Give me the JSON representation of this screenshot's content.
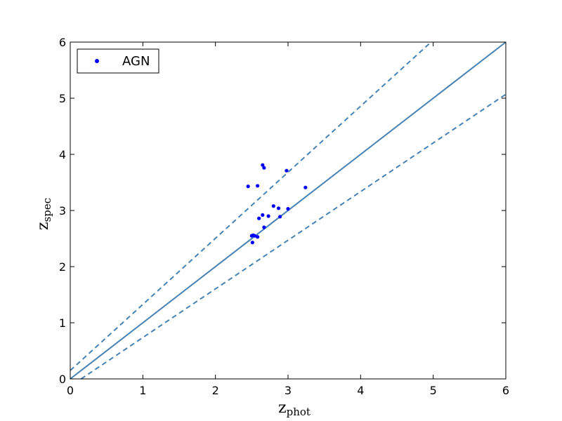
{
  "chart_data": {
    "type": "scatter",
    "xlabel": {
      "main": "z",
      "sub": "phot"
    },
    "ylabel": {
      "main": "z",
      "sub": "spec"
    },
    "xlim": [
      0,
      6
    ],
    "ylim": [
      0,
      6
    ],
    "xticks": [
      "0",
      "1",
      "2",
      "3",
      "4",
      "5",
      "6"
    ],
    "yticks": [
      "0",
      "1",
      "2",
      "3",
      "4",
      "5",
      "6"
    ],
    "grid": false,
    "legend": {
      "position": "top-left",
      "entries": [
        "AGN"
      ]
    },
    "series": [
      {
        "name": "AGN",
        "color": "#0000ff",
        "points": [
          [
            2.45,
            3.43
          ],
          [
            2.58,
            3.44
          ],
          [
            2.65,
            3.81
          ],
          [
            2.67,
            3.76
          ],
          [
            2.98,
            3.71
          ],
          [
            3.24,
            3.41
          ],
          [
            2.8,
            3.08
          ],
          [
            2.87,
            3.04
          ],
          [
            3.0,
            3.03
          ],
          [
            2.65,
            2.92
          ],
          [
            2.73,
            2.9
          ],
          [
            2.89,
            2.89
          ],
          [
            2.6,
            2.86
          ],
          [
            2.67,
            2.7
          ],
          [
            2.5,
            2.55
          ],
          [
            2.52,
            2.56
          ],
          [
            2.54,
            2.55
          ],
          [
            2.58,
            2.53
          ],
          [
            2.51,
            2.43
          ]
        ]
      }
    ],
    "reference_lines": [
      {
        "style": "solid",
        "color": "#4682b4",
        "x": [
          0,
          6
        ],
        "y": [
          0,
          6
        ]
      },
      {
        "style": "dashed",
        "color": "#4682b4",
        "x": [
          0,
          4.97
        ],
        "y": [
          0.15,
          6.0
        ]
      },
      {
        "style": "dashed",
        "color": "#4682b4",
        "x": [
          0.15,
          6.0
        ],
        "y": [
          0,
          5.07
        ]
      }
    ]
  }
}
